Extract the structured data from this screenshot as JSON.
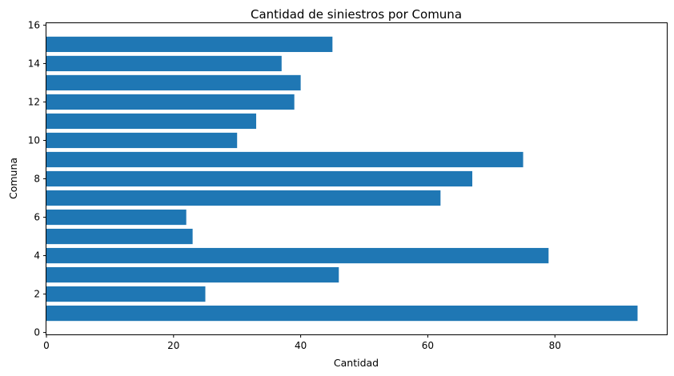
{
  "chart_data": {
    "type": "bar",
    "orientation": "horizontal",
    "title": "Cantidad de siniestros por Comuna",
    "xlabel": "Cantidad",
    "ylabel": "Comuna",
    "categories": [
      1,
      2,
      3,
      4,
      5,
      6,
      7,
      8,
      9,
      10,
      11,
      12,
      13,
      14,
      15
    ],
    "values": [
      93,
      25,
      46,
      79,
      23,
      22,
      62,
      67,
      75,
      30,
      33,
      39,
      40,
      37,
      45
    ],
    "xlim": [
      0,
      97.6
    ],
    "ylim": [
      -0.1,
      16.1
    ],
    "x_ticks": [
      0,
      20,
      40,
      60,
      80
    ],
    "y_ticks": [
      0,
      2,
      4,
      6,
      8,
      10,
      12,
      14,
      16
    ],
    "bar_color": "#1f77b4",
    "grid": false,
    "legend": "none"
  }
}
